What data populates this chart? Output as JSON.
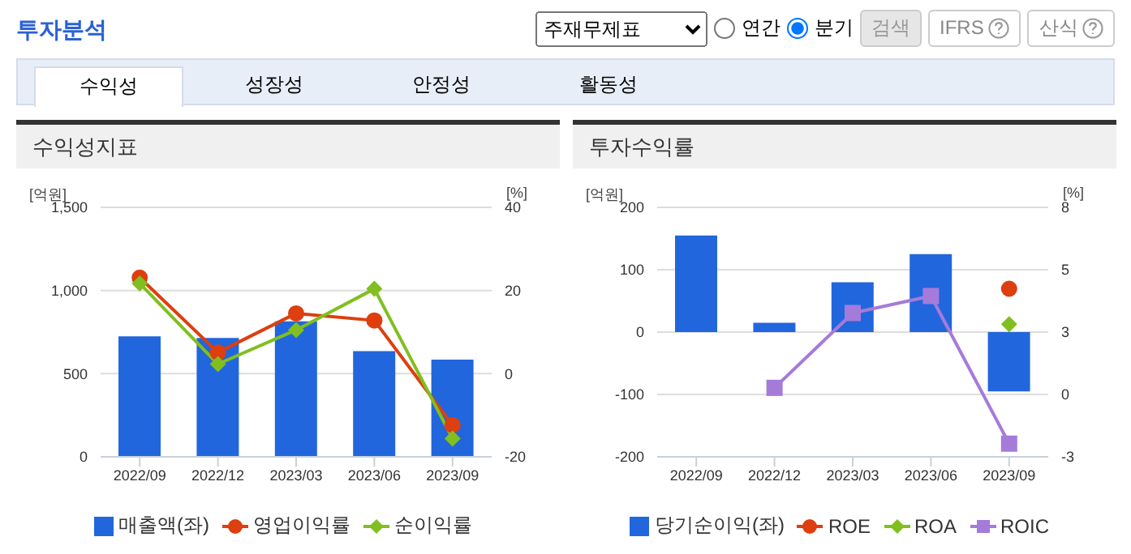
{
  "chart_data": [
    {
      "type": "bar",
      "title": "수익성지표",
      "ylabel": "[억원]",
      "y2label": "[%]",
      "annotations": [
        "투자분석",
        "주재무제표",
        "연간",
        "분기",
        "검색",
        "IFRS",
        "산식",
        "수익성",
        "성장성",
        "안정성",
        "활동성"
      ],
      "categories": [
        "2022/09",
        "2022/12",
        "2023/03",
        "2023/06",
        "2023/09"
      ],
      "series": [
        {
          "name": "매출액(좌)",
          "color": "#2266dd",
          "values": [
            725,
            715,
            815,
            635,
            585
          ]
        },
        {
          "name": "영업이익률",
          "type": "line",
          "axis": "y2",
          "marker": "circle",
          "color": "#dd3f0e",
          "values": [
            23.1,
            5.1,
            14.5,
            12.8,
            -12.4
          ]
        },
        {
          "name": "순이익률",
          "type": "line",
          "axis": "y2",
          "marker": "diamond",
          "color": "#80bf1f",
          "values": [
            21.7,
            2.3,
            10.5,
            20.4,
            -15.6
          ]
        }
      ],
      "ylim": [
        0,
        1500
      ],
      "yticks": [
        0,
        500,
        {
          "value": 1000,
          "label": "1,000"
        },
        {
          "value": 1500,
          "label": "1,500"
        }
      ],
      "y2lim": [
        -20,
        40
      ],
      "y2ticks": [
        -20,
        0,
        20,
        40
      ],
      "grid": "y",
      "legend": "bottom"
    },
    {
      "type": "bar",
      "title": "투자수익률",
      "ylabel": "[억원]",
      "y2label": "[%]",
      "categories": [
        "2022/09",
        "2022/12",
        "2023/03",
        "2023/06",
        "2023/09"
      ],
      "series": [
        {
          "name": "당기순이익(좌)",
          "color": "#2266dd",
          "values": [
            155,
            15,
            80,
            125,
            -95
          ]
        },
        {
          "name": "ROE",
          "type": "line",
          "axis": "y2",
          "marker": "circle",
          "color": "#dd3f0e",
          "values": [
            null,
            null,
            null,
            null,
            4.66
          ]
        },
        {
          "name": "ROA",
          "type": "line",
          "axis": "y2",
          "marker": "diamond",
          "color": "#80bf1f",
          "values": [
            null,
            null,
            null,
            null,
            3.1
          ]
        },
        {
          "name": "ROIC",
          "type": "line",
          "axis": "y2",
          "marker": "square",
          "color": "#a57bd9",
          "values": [
            null,
            0.29,
            3.59,
            4.34,
            -2.17
          ]
        }
      ],
      "ylim": [
        -200,
        200
      ],
      "yticks": [
        -200,
        -100,
        0,
        100,
        200
      ],
      "y2lim": [
        -2.75,
        8.25
      ],
      "y2ticks": [
        {
          "value": -2.75,
          "label": "-3"
        },
        0,
        {
          "value": 2.75,
          "label": "3"
        },
        {
          "value": 5.5,
          "label": "5"
        },
        {
          "value": 8.25,
          "label": "8"
        }
      ],
      "grid": "y",
      "legend": "bottom"
    }
  ]
}
